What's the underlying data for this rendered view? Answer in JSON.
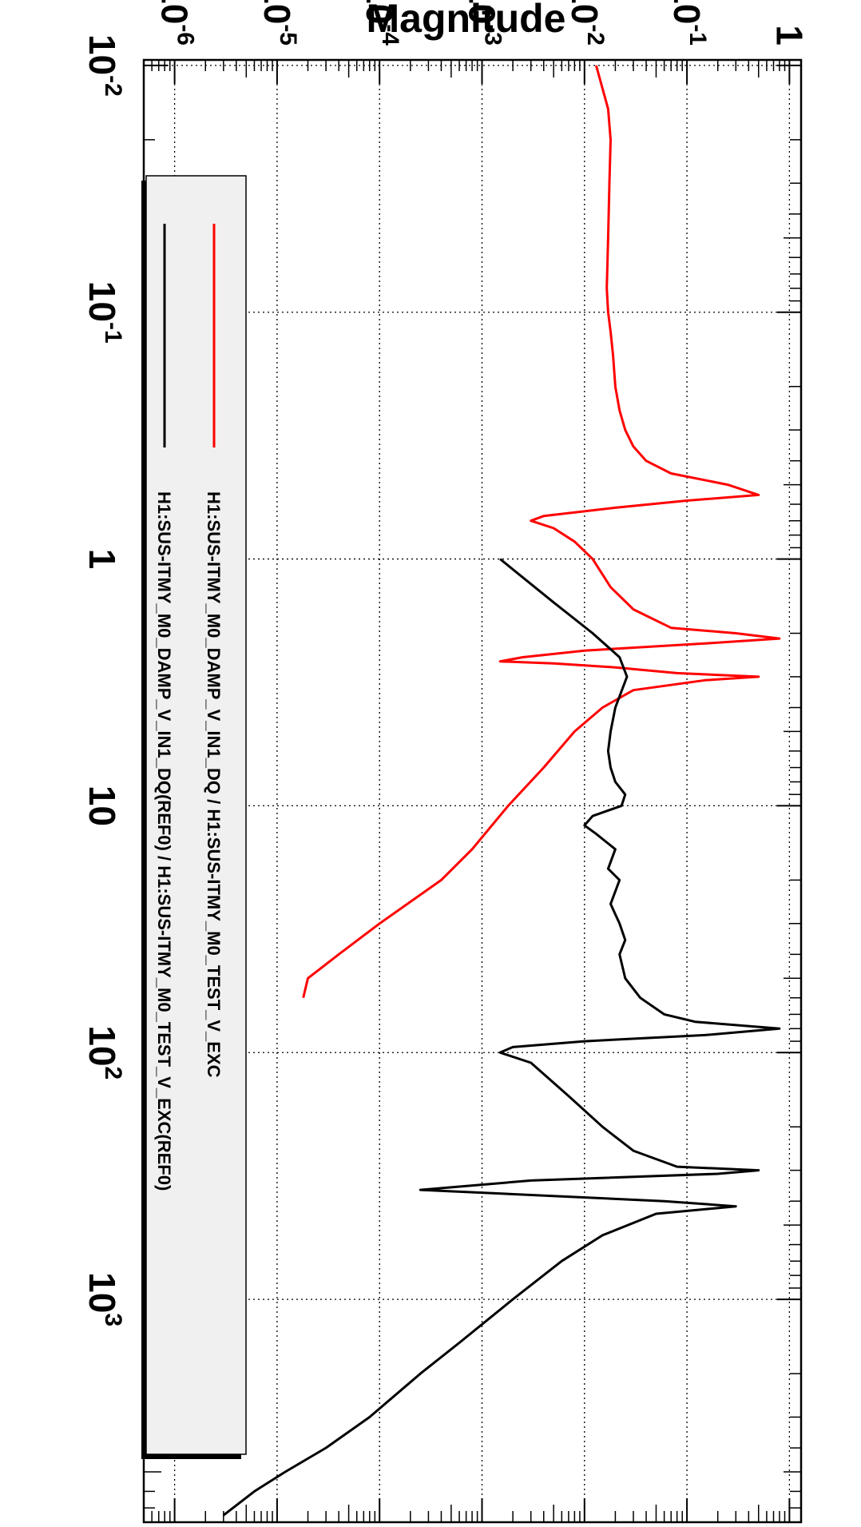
{
  "chart_data": {
    "type": "line",
    "title": "",
    "xlabel": "",
    "ylabel": "Magnitude",
    "x_scale": "log",
    "y_scale": "log",
    "xlim": [
      0.0095,
      8000
    ],
    "ylim": [
      5e-07,
      1.3
    ],
    "grid": true,
    "legend_position": "bottom-right",
    "x_ticks": [
      {
        "value": 0.01,
        "base": "10",
        "exp": "-2"
      },
      {
        "value": 0.1,
        "base": "10",
        "exp": "-1"
      },
      {
        "value": 1,
        "base": "1",
        "exp": ""
      },
      {
        "value": 10,
        "base": "10",
        "exp": ""
      },
      {
        "value": 100,
        "base": "10",
        "exp": "2"
      },
      {
        "value": 1000,
        "base": "10",
        "exp": "3"
      }
    ],
    "y_ticks": [
      {
        "value": 1e-06,
        "base": "10",
        "exp": "-6"
      },
      {
        "value": 1e-05,
        "base": "10",
        "exp": "-5"
      },
      {
        "value": 0.0001,
        "base": "10",
        "exp": "-4"
      },
      {
        "value": 0.001,
        "base": "10",
        "exp": "-3"
      },
      {
        "value": 0.01,
        "base": "10",
        "exp": "-2"
      },
      {
        "value": 0.1,
        "base": "10",
        "exp": "-1"
      },
      {
        "value": 1,
        "base": "1",
        "exp": ""
      }
    ],
    "series": [
      {
        "name": "H1:SUS-ITMY_M0_DAMP_V_IN1_DQ / H1:SUS-ITMY_M0_TEST_V_EXC",
        "color": "#ff0000",
        "points": [
          [
            0.01,
            0.013
          ],
          [
            0.015,
            0.017
          ],
          [
            0.02,
            0.018
          ],
          [
            0.03,
            0.0175
          ],
          [
            0.05,
            0.017
          ],
          [
            0.08,
            0.0165
          ],
          [
            0.1,
            0.017
          ],
          [
            0.12,
            0.018
          ],
          [
            0.15,
            0.019
          ],
          [
            0.2,
            0.02
          ],
          [
            0.25,
            0.022
          ],
          [
            0.3,
            0.025
          ],
          [
            0.35,
            0.03
          ],
          [
            0.4,
            0.04
          ],
          [
            0.45,
            0.07
          ],
          [
            0.5,
            0.25
          ],
          [
            0.55,
            0.5
          ],
          [
            0.58,
            0.1
          ],
          [
            0.62,
            0.02
          ],
          [
            0.67,
            0.004
          ],
          [
            0.7,
            0.003
          ],
          [
            0.75,
            0.005
          ],
          [
            0.85,
            0.008
          ],
          [
            1.0,
            0.012
          ],
          [
            1.3,
            0.018
          ],
          [
            1.6,
            0.03
          ],
          [
            1.9,
            0.07
          ],
          [
            2.0,
            0.3
          ],
          [
            2.1,
            0.8
          ],
          [
            2.2,
            0.15
          ],
          [
            2.35,
            0.01
          ],
          [
            2.5,
            0.0025
          ],
          [
            2.6,
            0.0015
          ],
          [
            2.65,
            0.005
          ],
          [
            2.75,
            0.02
          ],
          [
            2.9,
            0.08
          ],
          [
            3.0,
            0.5
          ],
          [
            3.1,
            0.15
          ],
          [
            3.4,
            0.03
          ],
          [
            4.0,
            0.015
          ],
          [
            5.0,
            0.008
          ],
          [
            7.0,
            0.004
          ],
          [
            10.0,
            0.0018
          ],
          [
            15.0,
            0.0008
          ],
          [
            20.0,
            0.0004
          ],
          [
            30.0,
            0.0001
          ],
          [
            40.0,
            4e-05
          ],
          [
            50.0,
            2e-05
          ],
          [
            60.0,
            1.8e-05
          ]
        ]
      },
      {
        "name": "H1:SUS-ITMY_M0_DAMP_V_IN1_DQ(REF0) / H1:SUS-ITMY_M0_TEST_V_EXC(REF0)",
        "color": "#000000",
        "points": [
          [
            1.0,
            0.0015
          ],
          [
            1.5,
            0.005
          ],
          [
            2.0,
            0.012
          ],
          [
            2.5,
            0.022
          ],
          [
            3.0,
            0.026
          ],
          [
            4.0,
            0.02
          ],
          [
            5.0,
            0.018
          ],
          [
            6.0,
            0.017
          ],
          [
            7.0,
            0.018
          ],
          [
            8.0,
            0.02
          ],
          [
            9.0,
            0.025
          ],
          [
            10.0,
            0.023
          ],
          [
            11.0,
            0.012
          ],
          [
            12.0,
            0.01
          ],
          [
            13.0,
            0.013
          ],
          [
            15.0,
            0.02
          ],
          [
            18.0,
            0.017
          ],
          [
            20.0,
            0.022
          ],
          [
            25.0,
            0.018
          ],
          [
            30.0,
            0.022
          ],
          [
            35.0,
            0.025
          ],
          [
            40.0,
            0.022
          ],
          [
            50.0,
            0.025
          ],
          [
            60.0,
            0.035
          ],
          [
            70.0,
            0.06
          ],
          [
            75.0,
            0.12
          ],
          [
            80.0,
            0.8
          ],
          [
            85.0,
            0.15
          ],
          [
            90.0,
            0.01
          ],
          [
            95.0,
            0.002
          ],
          [
            100.0,
            0.0015
          ],
          [
            110.0,
            0.003
          ],
          [
            150.0,
            0.007
          ],
          [
            200.0,
            0.015
          ],
          [
            250.0,
            0.03
          ],
          [
            290.0,
            0.08
          ],
          [
            300.0,
            0.5
          ],
          [
            310.0,
            0.2
          ],
          [
            330.0,
            0.003
          ],
          [
            360.0,
            0.00025
          ],
          [
            400.0,
            0.06
          ],
          [
            420.0,
            0.3
          ],
          [
            450.0,
            0.05
          ],
          [
            550.0,
            0.015
          ],
          [
            700.0,
            0.006
          ],
          [
            1000.0,
            0.002
          ],
          [
            1500.0,
            0.0006
          ],
          [
            2000.0,
            0.00025
          ],
          [
            3000.0,
            8e-05
          ],
          [
            4000.0,
            3e-05
          ],
          [
            5000.0,
            1.2e-05
          ],
          [
            6000.0,
            6e-06
          ],
          [
            7500.0,
            3e-06
          ]
        ]
      }
    ]
  }
}
